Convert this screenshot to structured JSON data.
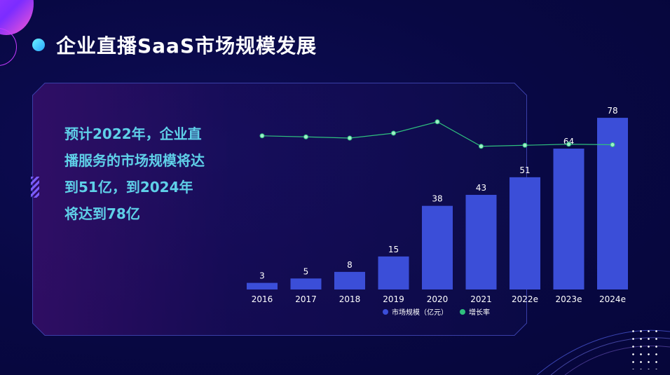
{
  "header": {
    "title": "企业直播SaaS市场规模发展"
  },
  "summary": {
    "text": "预计2022年，企业直播服务的市场规模将达到51亿，到2024年将达到78亿"
  },
  "colors": {
    "bar": "#3b4ed8",
    "line": "#2fbf7e",
    "accent": "#5fd0e8",
    "background": "#080843"
  },
  "chart_data": {
    "type": "bar",
    "categories": [
      "2016",
      "2017",
      "2018",
      "2019",
      "2020",
      "2021",
      "2022e",
      "2023e",
      "2024e"
    ],
    "series": [
      {
        "name": "市场规模（亿元）",
        "type": "bar",
        "values": [
          3,
          5,
          8,
          15,
          38,
          43,
          51,
          64,
          78
        ]
      },
      {
        "name": "增长率",
        "type": "line",
        "values": [
          0.73,
          0.67,
          0.6,
          0.88,
          1.53,
          0.13,
          0.19,
          0.25,
          0.22
        ]
      }
    ],
    "legend": {
      "position": "bottom"
    }
  }
}
